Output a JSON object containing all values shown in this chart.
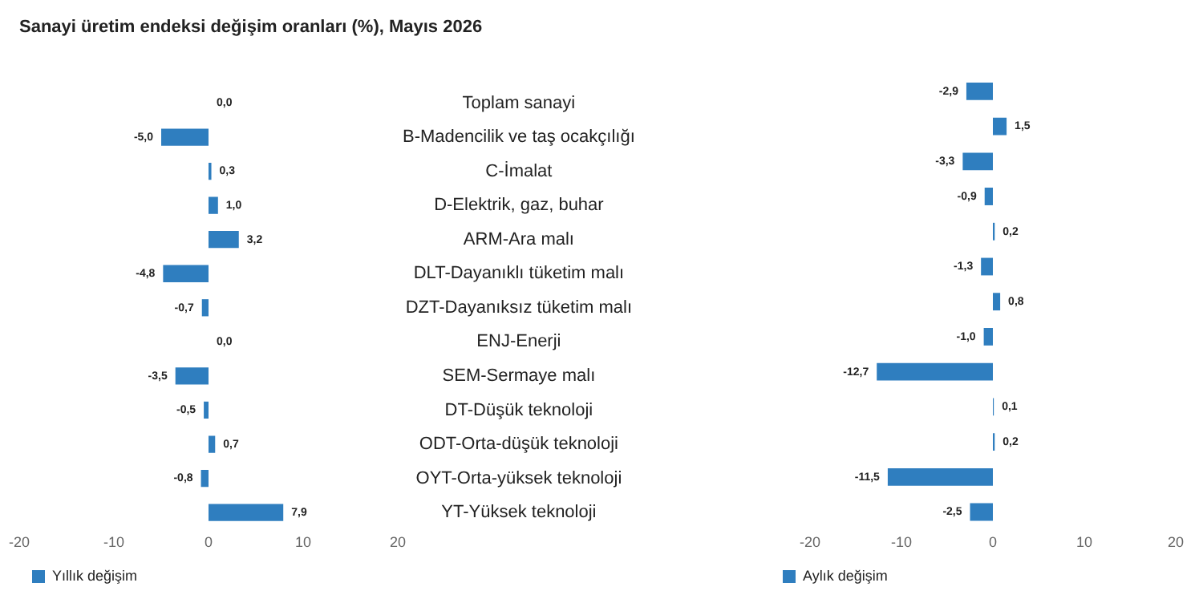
{
  "chart_data": [
    {
      "type": "bar",
      "orientation": "horizontal",
      "title": "Sanayi üretim endeksi değişim oranları (%), Mayıs 2026",
      "categories": [
        "Toplam sanayi",
        "B-Madencilik ve taş ocakçılığı",
        "C-İmalat",
        "D-Elektrik, gaz, buhar",
        "ARM-Ara malı",
        "DLT-Dayanıklı tüketim malı",
        "DZT-Dayanıksız tüketim malı",
        "ENJ-Enerji",
        "SEM-Sermaye malı",
        "DT-Düşük teknoloji",
        "ODT-Orta-düşük teknoloji",
        "OYT-Orta-yüksek teknoloji",
        "YT-Yüksek teknoloji"
      ],
      "series": [
        {
          "name": "Yıllık değişim",
          "color": "#2f7ebf",
          "values": [
            0.0,
            -5.0,
            0.3,
            1.0,
            3.2,
            -4.8,
            -0.7,
            0.0,
            -3.5,
            -0.5,
            0.7,
            -0.8,
            7.9
          ],
          "value_labels": [
            "0,0",
            "-5,0",
            "0,3",
            "1,0",
            "3,2",
            "-4,8",
            "-0,7",
            "0,0",
            "-3,5",
            "-0,5",
            "0,7",
            "-0,8",
            "7,9"
          ]
        }
      ],
      "xlim": [
        -20,
        20
      ],
      "xticks": [
        -20,
        -10,
        0,
        10,
        20
      ],
      "grid": false,
      "legend": "bottom left"
    },
    {
      "type": "bar",
      "orientation": "horizontal",
      "categories": [
        null,
        null,
        null,
        null,
        null,
        null,
        null,
        null,
        null,
        null,
        null,
        null,
        null
      ],
      "series": [
        {
          "name": "Aylık değişim",
          "color": "#2f7ebf",
          "values": [
            -2.9,
            1.5,
            -3.3,
            -0.9,
            0.2,
            -1.3,
            0.8,
            -1.0,
            -12.7,
            0.1,
            0.2,
            -11.5,
            -2.5
          ],
          "value_labels": [
            "-2,9",
            "1,5",
            "-3,3",
            "-0,9",
            "0,2",
            "-1,3",
            "0,8",
            "-1,0",
            "-12,7",
            "0,1",
            "0,2",
            "-11,5",
            "-2,5"
          ]
        }
      ],
      "xlim": [
        -20,
        20
      ],
      "xticks": [
        -20,
        -10,
        0,
        10,
        20
      ],
      "grid": false,
      "legend": "bottom left",
      "tick_labels": "x"
    }
  ]
}
